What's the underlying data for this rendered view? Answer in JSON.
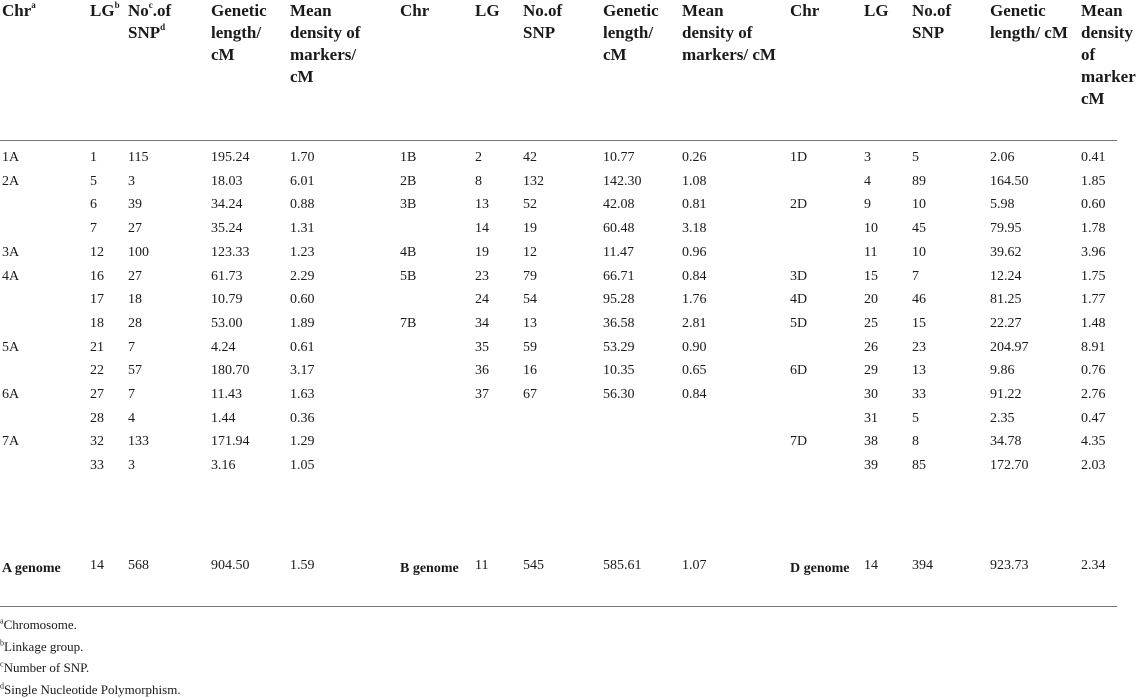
{
  "headers": [
    {
      "main": "Chr",
      "sup": "a",
      "rest": ""
    },
    {
      "main": "LG",
      "sup": "b",
      "rest": ""
    },
    {
      "main": "No",
      "sup": "c",
      "rest": ".of SNP",
      "sup2": "d"
    },
    {
      "main": "Genetic length/ cM",
      "sup": "",
      "rest": ""
    },
    {
      "main": "Mean density of markers/ cM",
      "sup": "",
      "rest": ""
    },
    {
      "main": "Chr",
      "sup": "",
      "rest": ""
    },
    {
      "main": "LG",
      "sup": "",
      "rest": ""
    },
    {
      "main": "No.of SNP",
      "sup": "",
      "rest": ""
    },
    {
      "main": "Genetic length/ cM",
      "sup": "",
      "rest": ""
    },
    {
      "main": "Mean density of markers/ cM",
      "sup": "",
      "rest": ""
    },
    {
      "main": "Chr",
      "sup": "",
      "rest": ""
    },
    {
      "main": "LG",
      "sup": "",
      "rest": ""
    },
    {
      "main": "No.of SNP",
      "sup": "",
      "rest": ""
    },
    {
      "main": "Genetic length/ cM",
      "sup": "",
      "rest": ""
    },
    {
      "main": "Mean density of marker cM",
      "sup": "",
      "rest": ""
    }
  ],
  "groupA": [
    [
      "1A",
      "1",
      "115",
      "195.24",
      "1.70"
    ],
    [
      "2A",
      "5",
      "3",
      "18.03",
      "6.01"
    ],
    [
      "",
      "6",
      "39",
      "34.24",
      "0.88"
    ],
    [
      "",
      "7",
      "27",
      "35.24",
      "1.31"
    ],
    [
      "3A",
      "12",
      "100",
      "123.33",
      "1.23"
    ],
    [
      "4A",
      "16",
      "27",
      "61.73",
      "2.29"
    ],
    [
      "",
      "17",
      "18",
      "10.79",
      "0.60"
    ],
    [
      "",
      "18",
      "28",
      "53.00",
      "1.89"
    ],
    [
      "5A",
      "21",
      "7",
      "4.24",
      "0.61"
    ],
    [
      "",
      "22",
      "57",
      "180.70",
      "3.17"
    ],
    [
      "6A",
      "27",
      "7",
      "11.43",
      "1.63"
    ],
    [
      "",
      "28",
      "4",
      "1.44",
      "0.36"
    ],
    [
      "7A",
      "32",
      "133",
      "171.94",
      "1.29"
    ],
    [
      "",
      "33",
      "3",
      "3.16",
      "1.05"
    ]
  ],
  "groupB": [
    [
      "1B",
      "2",
      "42",
      "10.77",
      "0.26"
    ],
    [
      "2B",
      "8",
      "132",
      "142.30",
      "1.08"
    ],
    [
      "3B",
      "13",
      "52",
      "42.08",
      "0.81"
    ],
    [
      "",
      "14",
      "19",
      "60.48",
      "3.18"
    ],
    [
      "4B",
      "19",
      "12",
      "11.47",
      "0.96"
    ],
    [
      "5B",
      "23",
      "79",
      "66.71",
      "0.84"
    ],
    [
      "",
      "24",
      "54",
      "95.28",
      "1.76"
    ],
    [
      "7B",
      "34",
      "13",
      "36.58",
      "2.81"
    ],
    [
      "",
      "35",
      "59",
      "53.29",
      "0.90"
    ],
    [
      "",
      "36",
      "16",
      "10.35",
      "0.65"
    ],
    [
      "",
      "37",
      "67",
      "56.30",
      "0.84"
    ],
    [
      "",
      "",
      "",
      "",
      ""
    ],
    [
      "",
      "",
      "",
      "",
      ""
    ],
    [
      "",
      "",
      "",
      "",
      ""
    ]
  ],
  "groupD": [
    [
      "1D",
      "3",
      "5",
      "2.06",
      "0.41"
    ],
    [
      "",
      "4",
      "89",
      "164.50",
      "1.85"
    ],
    [
      "2D",
      "9",
      "10",
      "5.98",
      "0.60"
    ],
    [
      "",
      "10",
      "45",
      "79.95",
      "1.78"
    ],
    [
      "",
      "11",
      "10",
      "39.62",
      "3.96"
    ],
    [
      "3D",
      "15",
      "7",
      "12.24",
      "1.75"
    ],
    [
      "4D",
      "20",
      "46",
      "81.25",
      "1.77"
    ],
    [
      "5D",
      "25",
      "15",
      "22.27",
      "1.48"
    ],
    [
      "",
      "26",
      "23",
      "204.97",
      "8.91"
    ],
    [
      "6D",
      "29",
      "13",
      "9.86",
      "0.76"
    ],
    [
      "",
      "30",
      "33",
      "91.22",
      "2.76"
    ],
    [
      "",
      "31",
      "5",
      "2.35",
      "0.47"
    ],
    [
      "7D",
      "38",
      "8",
      "34.78",
      "4.35"
    ],
    [
      "",
      "39",
      "85",
      "172.70",
      "2.03"
    ]
  ],
  "totals": [
    [
      "A genome",
      "14",
      "568",
      "904.50",
      "1.59"
    ],
    [
      "B genome",
      "11",
      "545",
      "585.61",
      "1.07"
    ],
    [
      "D genome",
      "14",
      "394",
      "923.73",
      "2.34"
    ]
  ],
  "footnotes": [
    {
      "sup": "a",
      "text": "Chromosome."
    },
    {
      "sup": "b",
      "text": "Linkage group."
    },
    {
      "sup": "c",
      "text": "Number of SNP."
    },
    {
      "sup": "d",
      "text": "Single Nucleotide Polymorphism."
    }
  ]
}
